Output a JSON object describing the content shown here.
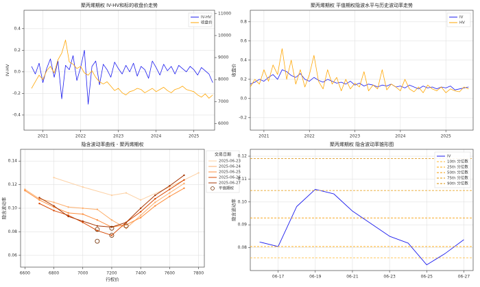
{
  "chart_data": [
    {
      "type": "line",
      "title": "聚丙烯期权 IV-HV和标的收盘价走势",
      "ylabel": "IV-HV",
      "y2label": "收盘价",
      "y_color": "#0000ee",
      "y2_color": "#cc0000",
      "grid": true,
      "legend": "upper right",
      "xlim": [
        2020.5,
        2025.55
      ],
      "xticks": [
        2021,
        2022,
        2023,
        2024,
        2025
      ],
      "ylim": [
        -0.54,
        0.57
      ],
      "yticks": [
        -0.4,
        -0.2,
        {
          "value": 0,
          "label": "0.0"
        },
        0.2,
        0.4
      ],
      "y2lim": [
        5700,
        11150
      ],
      "y2ticks": [
        6000,
        7000,
        8000,
        9000,
        10000,
        11000
      ],
      "x": [
        2020.7,
        2020.8,
        2020.9,
        2021.0,
        2021.1,
        2021.2,
        2021.3,
        2021.4,
        2021.5,
        2021.6,
        2021.7,
        2021.8,
        2021.9,
        2022.0,
        2022.1,
        2022.2,
        2022.3,
        2022.4,
        2022.5,
        2022.6,
        2022.7,
        2022.8,
        2022.9,
        2023.0,
        2023.1,
        2023.2,
        2023.3,
        2023.4,
        2023.5,
        2023.6,
        2023.7,
        2023.8,
        2023.9,
        2024.0,
        2024.1,
        2024.2,
        2024.3,
        2024.4,
        2024.5,
        2024.6,
        2024.7,
        2024.8,
        2024.9,
        2025.0,
        2025.1,
        2025.2,
        2025.3,
        2025.4,
        2025.5
      ],
      "series": [
        {
          "name": "IV-HV",
          "color": "#1a1aee",
          "values": [
            0.05,
            -0.02,
            0.08,
            -0.1,
            0.03,
            0.12,
            -0.05,
            0.1,
            -0.25,
            0.06,
            0.02,
            0.15,
            -0.08,
            0.04,
            0.2,
            -0.3,
            0.05,
            0.1,
            -0.12,
            0.07,
            0.02,
            -0.05,
            0.09,
            0.03,
            -0.02,
            0.06,
            0.0,
            0.08,
            -0.04,
            0.05,
            0.02,
            -0.06,
            0.1,
            0.04,
            -0.03,
            0.07,
            0.01,
            0.05,
            -0.02,
            0.06,
            0.03,
            0.0,
            0.05,
            0.02,
            -0.03,
            0.04,
            0.01,
            -0.02,
            -0.1
          ]
        },
        {
          "name": "收盘价",
          "color": "#ffa500",
          "axis": "y2",
          "values": [
            7600,
            7900,
            8200,
            8000,
            8400,
            8600,
            8300,
            8900,
            9200,
            9800,
            8800,
            8700,
            8500,
            8600,
            8300,
            8200,
            8400,
            8100,
            7900,
            7800,
            7900,
            7700,
            7500,
            7600,
            7400,
            7300,
            7450,
            7500,
            7600,
            7550,
            7400,
            7500,
            7600,
            7450,
            7550,
            7650,
            7500,
            7400,
            7550,
            7600,
            7700,
            7550,
            7500,
            7450,
            7300,
            7200,
            7350,
            7150,
            7300
          ]
        }
      ]
    },
    {
      "type": "line",
      "title": "聚丙烯期权 平值期权隐波水平与历史波动率走势",
      "grid": true,
      "legend": "upper right",
      "xlim": [
        2020.7,
        2025.6
      ],
      "xticks": [
        2021,
        2022,
        2023,
        2024,
        2025
      ],
      "ylim": [
        -0.33,
        0.92
      ],
      "yticks": [
        -0.2,
        {
          "value": 0,
          "label": "0.0"
        },
        0.2,
        0.4,
        0.6,
        0.8
      ],
      "x": [
        2020.7,
        2020.8,
        2020.9,
        2021.0,
        2021.1,
        2021.2,
        2021.3,
        2021.4,
        2021.5,
        2021.6,
        2021.7,
        2021.8,
        2021.9,
        2022.0,
        2022.1,
        2022.2,
        2022.3,
        2022.4,
        2022.5,
        2022.6,
        2022.7,
        2022.8,
        2022.9,
        2023.0,
        2023.1,
        2023.2,
        2023.3,
        2023.4,
        2023.5,
        2023.6,
        2023.7,
        2023.8,
        2023.9,
        2024.0,
        2024.1,
        2024.2,
        2024.3,
        2024.4,
        2024.5,
        2024.6,
        2024.7,
        2024.8,
        2024.9,
        2025.0,
        2025.1,
        2025.2,
        2025.3,
        2025.4,
        2025.5
      ],
      "series": [
        {
          "name": "IV",
          "color": "#1a1aee",
          "values": [
            0.15,
            0.17,
            0.2,
            0.18,
            0.22,
            0.25,
            0.2,
            0.3,
            0.28,
            0.24,
            0.22,
            0.26,
            0.2,
            0.18,
            0.22,
            0.19,
            0.17,
            0.2,
            0.18,
            0.16,
            0.17,
            0.15,
            0.18,
            0.14,
            0.16,
            0.13,
            0.15,
            0.14,
            0.12,
            0.14,
            0.13,
            0.15,
            0.12,
            0.13,
            0.11,
            0.14,
            0.12,
            0.1,
            0.13,
            0.11,
            0.12,
            0.1,
            0.12,
            0.11,
            0.13,
            0.09,
            0.1,
            0.11,
            0.12
          ]
        },
        {
          "name": "HV",
          "color": "#ffa500",
          "values": [
            0.12,
            0.2,
            0.15,
            0.3,
            0.18,
            0.35,
            0.25,
            0.52,
            0.2,
            0.4,
            0.15,
            0.3,
            0.12,
            0.25,
            0.45,
            0.18,
            0.1,
            0.3,
            0.15,
            0.22,
            0.08,
            0.2,
            0.1,
            0.16,
            0.12,
            0.28,
            0.08,
            0.14,
            0.1,
            0.3,
            0.09,
            0.15,
            0.12,
            0.08,
            0.2,
            0.1,
            0.07,
            0.12,
            0.06,
            0.14,
            0.1,
            0.08,
            0.12,
            0.06,
            0.1,
            0.08,
            0.07,
            0.12,
            0.1
          ]
        }
      ]
    },
    {
      "type": "smile",
      "title": "隐含波动率曲线 - 聚丙烯期权",
      "xlabel": "行权价",
      "ylabel": "隐含波动率",
      "grid": true,
      "legend": "outside right",
      "legend_title": "交易日期",
      "xlim": [
        6570,
        7840
      ],
      "xticks": [
        6600,
        6800,
        7000,
        7200,
        7400,
        7600,
        7800
      ],
      "ylim": [
        0.05,
        0.15
      ],
      "yticks": [
        0.06,
        0.08,
        {
          "value": 0.1,
          "label": "0.10"
        },
        0.12,
        0.14
      ],
      "series": [
        {
          "name": "2025-06-23",
          "color": "#fdd0a2",
          "x": [
            6800,
            7000,
            7200,
            7300,
            7400,
            7600,
            7800
          ],
          "values": [
            0.126,
            0.118,
            0.111,
            0.113,
            0.107,
            0.118,
            0.13
          ]
        },
        {
          "name": "2025-06-24",
          "color": "#fdae6b",
          "x": [
            6600,
            6700,
            6800,
            6900,
            7000,
            7100,
            7200,
            7300,
            7400,
            7500,
            7600,
            7700
          ],
          "values": [
            0.116,
            0.108,
            0.105,
            0.101,
            0.1,
            0.099,
            0.09,
            0.083,
            0.094,
            0.105,
            0.113,
            0.121
          ]
        },
        {
          "name": "2025-06-25",
          "color": "#fd8d3c",
          "x": [
            6600,
            6700,
            6800,
            6900,
            7000,
            7100,
            7200,
            7300,
            7400,
            7500,
            7600,
            7700
          ],
          "values": [
            0.115,
            0.107,
            0.101,
            0.096,
            0.095,
            0.09,
            0.084,
            0.086,
            0.092,
            0.102,
            0.11,
            0.117
          ]
        },
        {
          "name": "2025-06-26",
          "color": "#d94801",
          "x": [
            6700,
            6800,
            6900,
            7000,
            7100,
            7200,
            7300,
            7400,
            7500,
            7600,
            7700
          ],
          "values": [
            0.104,
            0.098,
            0.094,
            0.088,
            0.081,
            0.077,
            0.088,
            0.097,
            0.108,
            0.116,
            0.124
          ]
        },
        {
          "name": "2025-06-27",
          "color": "#a63603",
          "x": [
            6700,
            6800,
            6900,
            7000,
            7100,
            7200,
            7300,
            7400,
            7500,
            7600,
            7700
          ],
          "values": [
            0.109,
            0.102,
            0.093,
            0.089,
            0.085,
            0.084,
            0.088,
            0.1,
            0.111,
            0.119,
            0.128
          ]
        }
      ],
      "atm": {
        "name": "平值期权",
        "color": "#7a3a10",
        "x": [
          7100,
          7100,
          7200,
          7200,
          7300
        ],
        "values": [
          0.082,
          0.072,
          0.077,
          0.083,
          0.085
        ]
      }
    },
    {
      "type": "cone",
      "title": "聚丙烯期权 隐含波动率锥形图",
      "ylabel": "隐含波动率",
      "grid": true,
      "legend": "upper right",
      "ylim": [
        0.07,
        0.123
      ],
      "yticks": [
        0.08,
        0.09,
        {
          "value": 0.1,
          "label": "0.10"
        },
        0.11,
        0.12
      ],
      "categories": [
        null,
        "06-17",
        null,
        "06-19",
        null,
        "06-21",
        null,
        "06-23",
        null,
        "06-25",
        null,
        "06-27"
      ],
      "series": [
        {
          "name": "IV",
          "color": "#1a1aee",
          "values": [
            0.0825,
            0.0805,
            0.098,
            0.1055,
            0.1035,
            0.096,
            0.0905,
            0.085,
            0.082,
            0.0725,
            0.0775,
            0.0835
          ]
        }
      ],
      "reference_lines": [
        {
          "name": "10th 分位数",
          "value": 0.0755,
          "color": "#ffb733"
        },
        {
          "name": "25th 分位数",
          "value": 0.0805,
          "color": "#ffa500"
        },
        {
          "name": "50th 分位数",
          "value": 0.093,
          "color": "#f59b00"
        },
        {
          "name": "75th 分位数",
          "value": 0.105,
          "color": "#e69500"
        },
        {
          "name": "90th 分位数",
          "value": 0.119,
          "color": "#d98c00"
        }
      ]
    }
  ]
}
